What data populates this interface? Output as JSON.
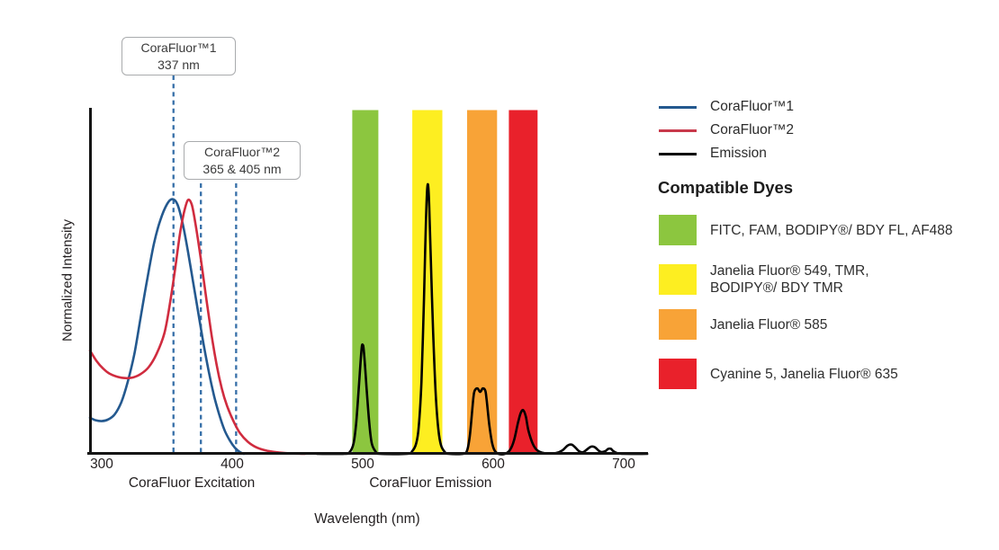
{
  "chart": {
    "y_axis_label": "Normalized Intensity",
    "x_axis_label": "Wavelength (nm)",
    "section_labels": [
      {
        "text": "CoraFluor Excitation",
        "nm": 369
      },
      {
        "text": "CoraFluor Emission",
        "nm": 552
      }
    ],
    "annotations": [
      {
        "title": "CoraFluor™1",
        "subtitle": "337 nm"
      },
      {
        "title": "CoraFluor™2",
        "subtitle": "365 & 405 nm"
      }
    ]
  },
  "chart_data": {
    "type": "line",
    "title": "",
    "xlabel": "Wavelength (nm)",
    "ylabel": "Normalized Intensity",
    "xlim": [
      291,
      719
    ],
    "ylim": [
      0,
      1
    ],
    "x_ticks": [
      300,
      400,
      500,
      600,
      700
    ],
    "grid": false,
    "legend_position": "outside-top-right",
    "marker_lines_nm": [
      355,
      376,
      403
    ],
    "marker_labels_nm": {
      "CoraFluor1": [
        337
      ],
      "CoraFluor2": [
        365,
        405
      ]
    },
    "series": [
      {
        "name": "CoraFluor™1",
        "color": "#24598f",
        "points": [
          [
            291,
            0.105
          ],
          [
            295,
            0.098
          ],
          [
            300,
            0.095
          ],
          [
            305,
            0.1
          ],
          [
            310,
            0.115
          ],
          [
            315,
            0.15
          ],
          [
            320,
            0.21
          ],
          [
            325,
            0.29
          ],
          [
            330,
            0.4
          ],
          [
            335,
            0.51
          ],
          [
            340,
            0.61
          ],
          [
            345,
            0.68
          ],
          [
            350,
            0.725
          ],
          [
            354,
            0.74
          ],
          [
            358,
            0.725
          ],
          [
            362,
            0.67
          ],
          [
            366,
            0.59
          ],
          [
            370,
            0.5
          ],
          [
            374,
            0.41
          ],
          [
            378,
            0.32
          ],
          [
            382,
            0.24
          ],
          [
            386,
            0.17
          ],
          [
            390,
            0.115
          ],
          [
            394,
            0.07
          ],
          [
            398,
            0.04
          ],
          [
            402,
            0.018
          ],
          [
            406,
            0.005
          ],
          [
            409,
            0
          ]
        ]
      },
      {
        "name": "CoraFluor™2",
        "color": "#d02c3f",
        "points": [
          [
            291,
            0.3
          ],
          [
            296,
            0.27
          ],
          [
            301,
            0.248
          ],
          [
            306,
            0.233
          ],
          [
            312,
            0.224
          ],
          [
            318,
            0.22
          ],
          [
            324,
            0.222
          ],
          [
            330,
            0.232
          ],
          [
            336,
            0.252
          ],
          [
            342,
            0.29
          ],
          [
            348,
            0.35
          ],
          [
            352,
            0.43
          ],
          [
            356,
            0.53
          ],
          [
            360,
            0.64
          ],
          [
            363,
            0.7
          ],
          [
            366,
            0.737
          ],
          [
            369,
            0.724
          ],
          [
            372,
            0.665
          ],
          [
            376,
            0.565
          ],
          [
            380,
            0.455
          ],
          [
            384,
            0.35
          ],
          [
            388,
            0.26
          ],
          [
            392,
            0.19
          ],
          [
            396,
            0.14
          ],
          [
            401,
            0.095
          ],
          [
            406,
            0.06
          ],
          [
            412,
            0.035
          ],
          [
            419,
            0.018
          ],
          [
            427,
            0.009
          ],
          [
            436,
            0.004
          ],
          [
            446,
            0.001
          ],
          [
            456,
            0
          ]
        ]
      },
      {
        "name": "Emission",
        "color": "#000000",
        "points": [
          [
            465,
            0
          ],
          [
            486,
            0
          ],
          [
            490,
            0.005
          ],
          [
            493,
            0.03
          ],
          [
            495,
            0.09
          ],
          [
            497,
            0.19
          ],
          [
            499,
            0.3
          ],
          [
            500,
            0.317
          ],
          [
            501,
            0.295
          ],
          [
            503,
            0.19
          ],
          [
            505,
            0.09
          ],
          [
            507,
            0.03
          ],
          [
            510,
            0.006
          ],
          [
            513,
            0
          ],
          [
            534,
            0
          ],
          [
            538,
            0.008
          ],
          [
            541,
            0.03
          ],
          [
            543,
            0.08
          ],
          [
            545,
            0.21
          ],
          [
            547,
            0.45
          ],
          [
            548,
            0.61
          ],
          [
            549,
            0.74
          ],
          [
            550,
            0.783
          ],
          [
            551,
            0.72
          ],
          [
            552,
            0.59
          ],
          [
            554,
            0.35
          ],
          [
            556,
            0.17
          ],
          [
            558,
            0.07
          ],
          [
            560,
            0.025
          ],
          [
            563,
            0.005
          ],
          [
            566,
            0
          ],
          [
            577,
            0
          ],
          [
            580,
            0.01
          ],
          [
            582,
            0.05
          ],
          [
            584,
            0.13
          ],
          [
            585,
            0.17
          ],
          [
            586,
            0.185
          ],
          [
            588,
            0.19
          ],
          [
            590,
            0.18
          ],
          [
            592,
            0.19
          ],
          [
            594,
            0.183
          ],
          [
            595,
            0.155
          ],
          [
            597,
            0.085
          ],
          [
            599,
            0.035
          ],
          [
            601,
            0.01
          ],
          [
            604,
            0
          ],
          [
            609,
            0
          ],
          [
            613,
            0.012
          ],
          [
            616,
            0.04
          ],
          [
            619,
            0.09
          ],
          [
            621,
            0.118
          ],
          [
            623,
            0.127
          ],
          [
            625,
            0.108
          ],
          [
            627,
            0.068
          ],
          [
            630,
            0.032
          ],
          [
            633,
            0.013
          ],
          [
            637,
            0.004
          ],
          [
            642,
            0.001
          ],
          [
            648,
            0.002
          ],
          [
            653,
            0.01
          ],
          [
            657,
            0.024
          ],
          [
            660,
            0.027
          ],
          [
            663,
            0.018
          ],
          [
            666,
            0.007
          ],
          [
            669,
            0.005
          ],
          [
            672,
            0.013
          ],
          [
            675,
            0.021
          ],
          [
            678,
            0.019
          ],
          [
            681,
            0.009
          ],
          [
            683,
            0.005
          ],
          [
            686,
            0.008
          ],
          [
            688,
            0.014
          ],
          [
            690,
            0.015
          ],
          [
            692,
            0.008
          ],
          [
            695,
            0.002
          ],
          [
            700,
            0
          ],
          [
            718,
            0
          ]
        ]
      }
    ],
    "bands": [
      {
        "name": "FITC, FAM, BODIPY®/ BDY FL, AF488",
        "color": "#8cc63f",
        "from_nm": 492,
        "to_nm": 512
      },
      {
        "name": "Janelia Fluor® 549, TMR, BODIPY®/ BDY TMR",
        "color": "#fdee21",
        "from_nm": 538,
        "to_nm": 561
      },
      {
        "name": "Janelia Fluor® 585",
        "color": "#f8a337",
        "from_nm": 580,
        "to_nm": 603
      },
      {
        "name": "Cyanine 5, Janelia Fluor® 635",
        "color": "#e9212b",
        "from_nm": 612,
        "to_nm": 634
      }
    ]
  },
  "legend": {
    "items": [
      {
        "label": "CoraFluor™1",
        "color": "#24598f"
      },
      {
        "label": "CoraFluor™2",
        "color": "#c8394b"
      },
      {
        "label": "Emission",
        "color": "#000000"
      }
    ]
  },
  "dyes": {
    "heading": "Compatible Dyes",
    "items": [
      {
        "color": "#8cc63f",
        "lines": [
          "FITC, FAM, BODIPY®/ BDY FL, AF488"
        ]
      },
      {
        "color": "#fdee21",
        "lines": [
          "Janelia Fluor® 549, TMR,",
          "BODIPY®/ BDY TMR"
        ]
      },
      {
        "color": "#f8a337",
        "lines": [
          "Janelia Fluor® 585"
        ]
      },
      {
        "color": "#e9212b",
        "lines": [
          "Cyanine 5, Janelia Fluor® 635"
        ]
      }
    ]
  }
}
